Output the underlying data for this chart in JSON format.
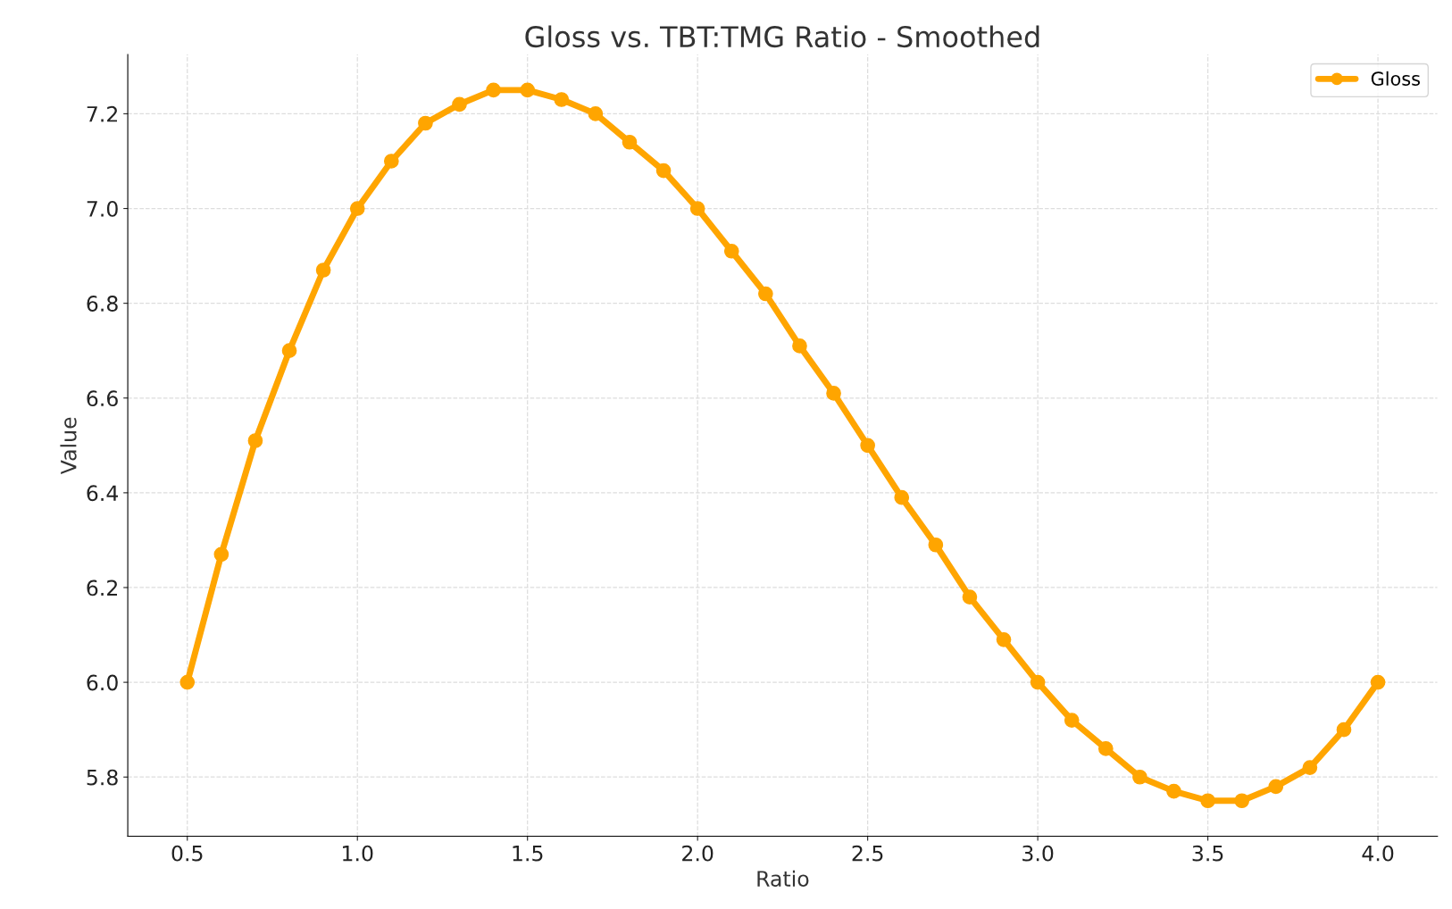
{
  "chart_data": {
    "type": "line",
    "title": "Gloss vs. TBT:TMG Ratio - Smoothed",
    "xlabel": "Ratio",
    "ylabel": "Value",
    "x": [
      0.5,
      0.6,
      0.7,
      0.8,
      0.9,
      1.0,
      1.1,
      1.2,
      1.3,
      1.4,
      1.5,
      1.6,
      1.7,
      1.8,
      1.9,
      2.0,
      2.1,
      2.2,
      2.3,
      2.4,
      2.5,
      2.6,
      2.7,
      2.8,
      2.9,
      3.0,
      3.1,
      3.2,
      3.3,
      3.4,
      3.5,
      3.6,
      3.7,
      3.8,
      3.9,
      4.0
    ],
    "series": [
      {
        "name": "Gloss",
        "color": "#ffa500",
        "values": [
          6.0,
          6.27,
          6.51,
          6.7,
          6.87,
          7.0,
          7.1,
          7.18,
          7.22,
          7.25,
          7.25,
          7.23,
          7.2,
          7.14,
          7.08,
          7.0,
          6.91,
          6.82,
          6.71,
          6.61,
          6.5,
          6.39,
          6.29,
          6.18,
          6.09,
          6.0,
          5.92,
          5.86,
          5.8,
          5.77,
          5.75,
          5.75,
          5.78,
          5.82,
          5.9,
          6.0
        ]
      }
    ],
    "xlim": [
      0.325,
      4.175
    ],
    "ylim": [
      5.675,
      7.325
    ],
    "xticks": [
      {
        "value": 0.5,
        "label": "0.5"
      },
      {
        "value": 1.0,
        "label": "1.0"
      },
      {
        "value": 1.5,
        "label": "1.5"
      },
      {
        "value": 2.0,
        "label": "2.0"
      },
      {
        "value": 2.5,
        "label": "2.5"
      },
      {
        "value": 3.0,
        "label": "3.0"
      },
      {
        "value": 3.5,
        "label": "3.5"
      },
      {
        "value": 4.0,
        "label": "4.0"
      }
    ],
    "yticks": [
      5.8,
      {
        "value": 6.0,
        "label": "6.0"
      },
      6.2,
      6.4,
      6.6,
      6.8,
      {
        "value": 7.0,
        "label": "7.0"
      },
      7.2
    ],
    "grid": true,
    "legend": "top right",
    "marker": "circle",
    "line_style": "solid"
  }
}
